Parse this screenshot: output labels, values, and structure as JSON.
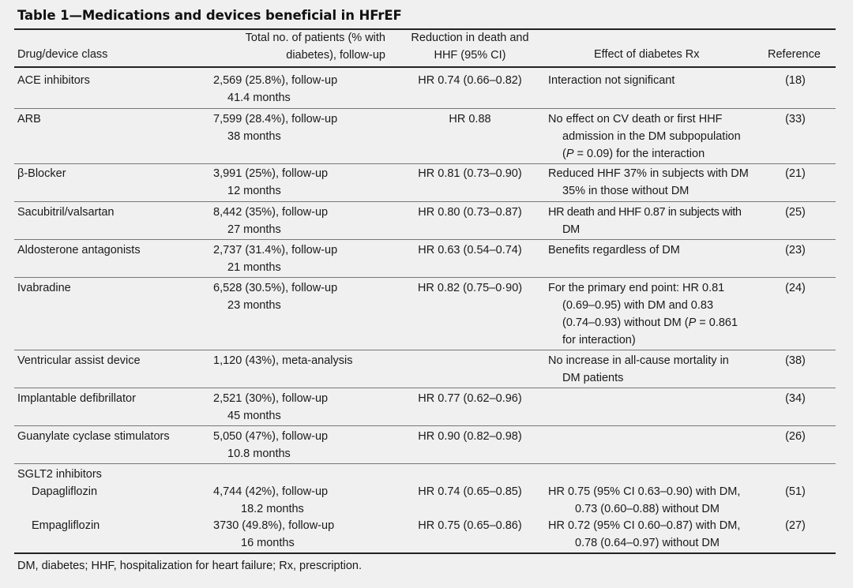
{
  "title": "Table 1—Medications and devices beneficial in HFrEF",
  "headers": {
    "drug": "Drug/device class",
    "patients_l1": "Total no. of patients (% with",
    "patients_l2": "diabetes), follow-up",
    "reduction_l1": "Reduction in death and",
    "reduction_l2": "HHF (95% CI)",
    "effect": "Effect of diabetes Rx",
    "reference": "Reference"
  },
  "rows": [
    {
      "drug": "ACE inhibitors",
      "pat1": "2,569 (25.8%), follow-up",
      "pat2": "41.4 months",
      "red": "HR 0.74 (0.66–0.82)",
      "eff1": "Interaction not significant",
      "ref": "(18)"
    },
    {
      "drug": "ARB",
      "pat1": "7,599 (28.4%), follow-up",
      "pat2": "38 months",
      "red": "HR 0.88",
      "eff1": "No effect on CV death or first HHF",
      "eff2": "admission in the DM subpopulation",
      "eff3a": "(",
      "eff3p": "P",
      "eff3b": " = 0.09) for the interaction",
      "ref": "(33)"
    },
    {
      "drug": "β-Blocker",
      "pat1": "3,991 (25%), follow-up",
      "pat2": "12 months",
      "red": "HR 0.81 (0.73–0.90)",
      "eff1": "Reduced HHF 37% in subjects with DM",
      "eff2": "35% in those without DM",
      "ref": "(21)"
    },
    {
      "drug": "Sacubitril/valsartan",
      "pat1": "8,442 (35%), follow-up",
      "pat2": "27 months",
      "red": "HR 0.80 (0.73–0.87)",
      "eff1": "HR death and HHF 0.87 in subjects with",
      "eff2": "DM",
      "ref": "(25)"
    },
    {
      "drug": "Aldosterone antagonists",
      "pat1": "2,737 (31.4%), follow-up",
      "pat2": "21 months",
      "red": "HR 0.63 (0.54–0.74)",
      "eff1": "Benefits regardless of DM",
      "ref": "(23)"
    },
    {
      "drug": "Ivabradine",
      "pat1": "6,528 (30.5%), follow-up",
      "pat2": "23 months",
      "red": "HR 0.82 (0.75–0·90)",
      "eff1": "For the primary end point: HR 0.81",
      "eff2": "(0.69–0.95) with DM and 0.83",
      "eff3a": "(0.74–0.93) without DM (",
      "eff3p": "P",
      "eff3b": " = 0.861",
      "eff4": "for interaction)",
      "ref": "(24)"
    },
    {
      "drug": "Ventricular assist device",
      "pat1": "1,120 (43%), meta-analysis",
      "red": "",
      "eff1": "No increase in all-cause mortality in",
      "eff2": "DM patients",
      "ref": "(38)"
    },
    {
      "drug": "Implantable defibrillator",
      "pat1": "2,521 (30%), follow-up",
      "pat2": "45 months",
      "red": "HR 0.77 (0.62–0.96)",
      "eff1": "",
      "ref": "(34)"
    },
    {
      "drug": "Guanylate cyclase stimulators",
      "pat1": "5,050 (47%), follow-up",
      "pat2": "10.8 months",
      "red": "HR 0.90 (0.82–0.98)",
      "eff1": "",
      "ref": "(26)"
    }
  ],
  "sglt2": {
    "group": "SGLT2 inhibitors",
    "items": [
      {
        "drug": "Dapagliflozin",
        "pat1": "4,744 (42%), follow-up",
        "pat2": "18.2 months",
        "red": "HR 0.74 (0.65–0.85)",
        "eff1": "HR 0.75 (95% CI 0.63–0.90) with DM,",
        "eff2": "0.73 (0.60–0.88) without DM",
        "ref": "(51)"
      },
      {
        "drug": "Empagliflozin",
        "pat1": "3730 (49.8%), follow-up",
        "pat2": "16 months",
        "red": "HR 0.75 (0.65–0.86)",
        "eff1": "HR 0.72 (95% CI 0.60–0.87) with DM,",
        "eff2": "0.78 (0.64–0.97) without DM",
        "ref": "(27)"
      }
    ]
  },
  "footnote": "DM, diabetes; HHF, hospitalization for heart failure; Rx, prescription."
}
